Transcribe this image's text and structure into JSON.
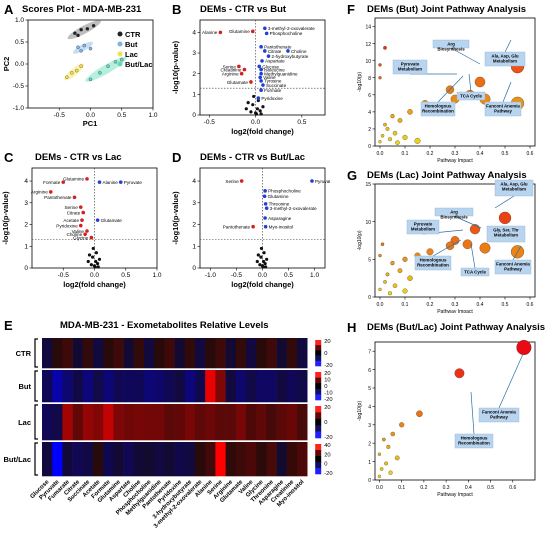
{
  "panels": {
    "A": {
      "letter": "A",
      "title": "Scores Plot - MDA-MB-231",
      "xlabel": "PC1",
      "ylabel": "PC2",
      "legend": [
        "CTR",
        "But",
        "Lac",
        "But/Lac"
      ]
    },
    "B": {
      "letter": "B",
      "title": "DEMs - CTR vs But"
    },
    "C": {
      "letter": "C",
      "title": "DEMs - CTR vs Lac"
    },
    "D": {
      "letter": "D",
      "title": "DEMs - CTR vs But/Lac"
    },
    "E": {
      "letter": "E",
      "title": "MDA-MB-231 - Exometabolites Relative Levels",
      "rows": [
        "CTR",
        "But",
        "Lac",
        "But/Lac"
      ]
    },
    "F": {
      "letter": "F",
      "title": "DEMs (But) Joint Pathway Analysis"
    },
    "G": {
      "letter": "G",
      "title": "DEMs (Lac) Joint Pathway Analysis"
    },
    "H": {
      "letter": "H",
      "title": "DEMs (But/Lac) Joint Pathway Analysis"
    }
  },
  "volcano_axes": {
    "xlabel": "log2(fold change)",
    "ylabel": "-log10(p-value)"
  },
  "pathway_axes": {
    "xlabel": "Pathway Impact",
    "ylabel": "-log10(p)"
  },
  "colors": {
    "ctr": "#222222",
    "but": "#7fb3e6",
    "lac": "#f2e04a",
    "butlac": "#5fd9b8",
    "down": "#d62020",
    "up": "#1f3fd6",
    "ns": "#111111"
  },
  "chart_data": [
    {
      "id": "A",
      "type": "scatter",
      "title": "Scores Plot - MDA-MB-231",
      "xlabel": "PC1",
      "ylabel": "PC2",
      "xlim": [
        -1.0,
        1.0
      ],
      "ylim": [
        -1.0,
        1.0
      ],
      "xticks": [
        "-0.5",
        "0.0",
        "0.5",
        "1.0"
      ],
      "yticks": [
        "-1.0",
        "-0.5",
        "0.0",
        "0.5",
        "1.0"
      ],
      "legend_position": "top-right",
      "series": [
        {
          "name": "CTR",
          "points": [
            [
              -0.25,
              0.7
            ],
            [
              -0.15,
              0.78
            ],
            [
              -0.05,
              0.8
            ],
            [
              0.05,
              0.87
            ],
            [
              -0.2,
              0.65
            ]
          ]
        },
        {
          "name": "But",
          "points": [
            [
              -0.2,
              0.38
            ],
            [
              -0.1,
              0.42
            ],
            [
              0.0,
              0.35
            ],
            [
              -0.15,
              0.3
            ]
          ]
        },
        {
          "name": "Lac",
          "points": [
            [
              -0.38,
              -0.3
            ],
            [
              -0.3,
              -0.2
            ],
            [
              -0.22,
              -0.15
            ],
            [
              -0.15,
              -0.05
            ]
          ]
        },
        {
          "name": "But/Lac",
          "points": [
            [
              0.0,
              -0.35
            ],
            [
              0.15,
              -0.2
            ],
            [
              0.28,
              -0.05
            ],
            [
              0.4,
              0.05
            ],
            [
              0.5,
              0.1
            ]
          ]
        }
      ]
    },
    {
      "id": "B",
      "type": "scatter",
      "title": "DEMs - CTR vs But",
      "xlim": [
        -0.6,
        0.75
      ],
      "ylim": [
        0,
        4.6
      ],
      "xticks": [
        "-0.5",
        "0.0",
        "0.5"
      ],
      "yticks": [
        "0",
        "1",
        "2",
        "3",
        "4"
      ],
      "points": [
        {
          "name": "Alanine",
          "x": -0.38,
          "y": 4.0,
          "dir": "down"
        },
        {
          "name": "Glutamine",
          "x": -0.03,
          "y": 4.05,
          "dir": "down"
        },
        {
          "name": "3-methyl-2-oxovalerate",
          "x": 0.1,
          "y": 4.2,
          "dir": "up"
        },
        {
          "name": "Phosphocholine",
          "x": 0.12,
          "y": 3.95,
          "dir": "up"
        },
        {
          "name": "Pantothenate",
          "x": 0.06,
          "y": 3.3,
          "dir": "up"
        },
        {
          "name": "Citrate",
          "x": 0.1,
          "y": 3.1,
          "dir": "up"
        },
        {
          "name": "Choline",
          "x": 0.35,
          "y": 3.1,
          "dir": "up"
        },
        {
          "name": "2-hydroxybutyrate",
          "x": 0.14,
          "y": 2.85,
          "dir": "up"
        },
        {
          "name": "Aspartate",
          "x": 0.07,
          "y": 2.62,
          "dir": "up"
        },
        {
          "name": "Serine",
          "x": -0.18,
          "y": 2.35,
          "dir": "down"
        },
        {
          "name": "Glucose",
          "x": 0.04,
          "y": 2.35,
          "dir": "up"
        },
        {
          "name": "Creatinine",
          "x": -0.12,
          "y": 2.2,
          "dir": "down"
        },
        {
          "name": "Isoleucine",
          "x": 0.06,
          "y": 2.2,
          "dir": "up"
        },
        {
          "name": "Arginine",
          "x": -0.15,
          "y": 2.0,
          "dir": "down"
        },
        {
          "name": "Methylguanidine",
          "x": 0.06,
          "y": 2.0,
          "dir": "up"
        },
        {
          "name": "Valine",
          "x": 0.05,
          "y": 1.82,
          "dir": "up"
        },
        {
          "name": "Glutamate",
          "x": -0.05,
          "y": 1.6,
          "dir": "down"
        },
        {
          "name": "Tyrosine",
          "x": 0.06,
          "y": 1.65,
          "dir": "up"
        },
        {
          "name": "Succinate",
          "x": 0.08,
          "y": 1.45,
          "dir": "up"
        },
        {
          "name": "Formate",
          "x": 0.06,
          "y": 1.2,
          "dir": "up"
        },
        {
          "name": "Pyridoxine",
          "x": 0.03,
          "y": 0.82,
          "dir": "up"
        }
      ],
      "threshold_y": 1.3
    },
    {
      "id": "C",
      "type": "scatter",
      "title": "DEMs - CTR vs Lac",
      "xlim": [
        -1.0,
        1.0
      ],
      "ylim": [
        0,
        4.6
      ],
      "xticks": [
        "-0.5",
        "0.0",
        "0.5",
        "1.0"
      ],
      "yticks": [
        "0",
        "1",
        "2",
        "3",
        "4"
      ],
      "points": [
        {
          "name": "Glutamine",
          "x": -0.12,
          "y": 4.1,
          "dir": "down"
        },
        {
          "name": "Formate",
          "x": -0.5,
          "y": 3.95,
          "dir": "down"
        },
        {
          "name": "Alanine",
          "x": 0.08,
          "y": 3.95,
          "dir": "up"
        },
        {
          "name": "Pyruvate",
          "x": 0.42,
          "y": 3.95,
          "dir": "up"
        },
        {
          "name": "Arginine",
          "x": -0.7,
          "y": 3.5,
          "dir": "down"
        },
        {
          "name": "Pantothenate",
          "x": -0.32,
          "y": 3.25,
          "dir": "down"
        },
        {
          "name": "Serine",
          "x": -0.22,
          "y": 2.8,
          "dir": "down"
        },
        {
          "name": "Citrate",
          "x": -0.18,
          "y": 2.55,
          "dir": "down"
        },
        {
          "name": "Acetate",
          "x": -0.2,
          "y": 2.2,
          "dir": "down"
        },
        {
          "name": "Glutamate",
          "x": 0.05,
          "y": 2.2,
          "dir": "up"
        },
        {
          "name": "Pyridoxine",
          "x": -0.22,
          "y": 1.95,
          "dir": "down"
        },
        {
          "name": "Valine",
          "x": -0.12,
          "y": 1.7,
          "dir": "down"
        },
        {
          "name": "Choline",
          "x": -0.15,
          "y": 1.55,
          "dir": "down"
        },
        {
          "name": "Glycine",
          "x": -0.05,
          "y": 1.4,
          "dir": "down"
        }
      ],
      "threshold_y": 1.3
    },
    {
      "id": "D",
      "type": "scatter",
      "title": "DEMs - CTR vs But/Lac",
      "xlim": [
        -1.2,
        1.2
      ],
      "ylim": [
        0,
        4.6
      ],
      "xticks": [
        "-1.0",
        "-0.5",
        "0.0",
        "0.5",
        "1.0"
      ],
      "yticks": [
        "0",
        "1",
        "2",
        "3",
        "4"
      ],
      "points": [
        {
          "name": "Serine",
          "x": -0.4,
          "y": 4.0,
          "dir": "down"
        },
        {
          "name": "Pyruvate",
          "x": 0.95,
          "y": 4.0,
          "dir": "up"
        },
        {
          "name": "Phosphocholine",
          "x": 0.05,
          "y": 3.55,
          "dir": "up"
        },
        {
          "name": "Glutamine",
          "x": 0.04,
          "y": 3.3,
          "dir": "up"
        },
        {
          "name": "Threonine",
          "x": 0.06,
          "y": 2.95,
          "dir": "up"
        },
        {
          "name": "3-methyl-2-oxovalerate",
          "x": 0.08,
          "y": 2.75,
          "dir": "up"
        },
        {
          "name": "Asparagine",
          "x": 0.05,
          "y": 2.3,
          "dir": "up"
        },
        {
          "name": "Pantothenate",
          "x": -0.18,
          "y": 1.9,
          "dir": "down"
        },
        {
          "name": "Myo-inositol",
          "x": 0.06,
          "y": 1.9,
          "dir": "up"
        }
      ],
      "threshold_y": 1.3
    },
    {
      "id": "E",
      "type": "heatmap",
      "title": "MDA-MB-231 - Exometabolites Relative Levels",
      "rows": [
        "CTR",
        "But",
        "Lac",
        "But/Lac"
      ],
      "columns": [
        "Glucose",
        "Pyruvate",
        "Fumarate",
        "Citrate",
        "Succinate",
        "Acetate",
        "Formate",
        "Glutamine",
        "Aspartate",
        "Choline",
        "Phosphocholine",
        "Methylguanidine",
        "Pantothenate",
        "Pyridoxine",
        "3-hydroxybutyrate",
        "3-methyl-2-oxovalerate",
        "Alanine",
        "Serine",
        "Arginine",
        "Glutamate",
        "Valine",
        "Glycine",
        "Threonine",
        "Asparagine",
        "Creatinine",
        "Myo-inositol"
      ],
      "values": [
        [
          0,
          0,
          0,
          0,
          0,
          0,
          0,
          0,
          0,
          0,
          0,
          0,
          0,
          0,
          0,
          0,
          0,
          0,
          0,
          0,
          0,
          0,
          0,
          0,
          0,
          0
        ],
        [
          -8,
          -15,
          -10,
          -7,
          -10,
          -6,
          -8,
          -6,
          -10,
          -5,
          -12,
          -6,
          -6,
          -6,
          -10,
          -7,
          30,
          12,
          -6,
          -8,
          -6,
          -5,
          -8,
          -6,
          -5,
          -6
        ],
        [
          -5,
          -6,
          20,
          8,
          12,
          14,
          20,
          15,
          10,
          8,
          12,
          9,
          10,
          8,
          8,
          9,
          8,
          10,
          7,
          8,
          7,
          6,
          7,
          7,
          6,
          6
        ],
        [
          -6,
          -35,
          -4,
          -3,
          -4,
          -3,
          -4,
          -3,
          -3,
          -2,
          -4,
          -2,
          -3,
          -2,
          -3,
          -3,
          5,
          30,
          4,
          3,
          2,
          2,
          3,
          2,
          2,
          2
        ]
      ],
      "legend_ranges": [
        [
          "-20",
          "0",
          "20"
        ],
        [
          "-20",
          "-10",
          "0",
          "10",
          "20"
        ],
        [
          "-20",
          "0",
          "20"
        ],
        [
          "-20",
          "0",
          "20",
          "40"
        ]
      ]
    },
    {
      "id": "F",
      "type": "scatter",
      "title": "DEMs (But) Joint Pathway Analysis",
      "xlabel": "Pathway Impact",
      "ylabel": "-log10(p)",
      "xlim": [
        -0.02,
        0.62
      ],
      "ylim": [
        0,
        15
      ],
      "xticks": [
        "0.0",
        "0.1",
        "0.2",
        "0.3",
        "0.4",
        "0.5",
        "0.6"
      ],
      "yticks": [
        "0",
        "2",
        "4",
        "6",
        "8",
        "10",
        "12",
        "14"
      ],
      "annotations": [
        "Arg Biosynthesis",
        "Pyruvate Metabolism",
        "Ala, Asp, Glu Metabolism",
        "TCA Cycle",
        "Homologous Recombination",
        "Fanconi Anemia Pathway"
      ],
      "points": [
        [
          0.55,
          9.3
        ],
        [
          0.4,
          7.5
        ],
        [
          0.36,
          6.0
        ],
        [
          0.3,
          5.5
        ],
        [
          0.28,
          6.6
        ],
        [
          0.42,
          5.5
        ],
        [
          0.55,
          5.0
        ],
        [
          0.18,
          5.0
        ],
        [
          0.12,
          4.0
        ],
        [
          0.05,
          3.5
        ],
        [
          0.08,
          3.0
        ],
        [
          0.02,
          2.5
        ],
        [
          0.03,
          2.0
        ],
        [
          0.06,
          1.5
        ],
        [
          0.01,
          1.2
        ],
        [
          0.1,
          1.0
        ],
        [
          0.04,
          0.8
        ],
        [
          0.0,
          0.5
        ],
        [
          0.15,
          0.6
        ],
        [
          0.07,
          0.4
        ],
        [
          0.02,
          11.5
        ],
        [
          0.0,
          9.5
        ],
        [
          0.0,
          8.0
        ]
      ]
    },
    {
      "id": "G",
      "type": "scatter",
      "title": "DEMs (Lac) Joint Pathway Analysis",
      "xlabel": "Pathway Impact",
      "ylabel": "-log10(p)",
      "xlim": [
        -0.02,
        0.62
      ],
      "ylim": [
        0,
        15
      ],
      "xticks": [
        "0.0",
        "0.1",
        "0.2",
        "0.3",
        "0.4",
        "0.5",
        "0.6"
      ],
      "yticks": [
        "0",
        "5",
        "10",
        "15"
      ],
      "annotations": [
        "Ala, Asp, Glu Metabolism",
        "Arg Biosynthesis",
        "Pyruvate Metabolism",
        "Gly, Ser, Thr Metabolism",
        "Homologous Recombination",
        "TCA Cycle",
        "Fanconi Anemia Pathway"
      ],
      "points": [
        [
          0.5,
          10.5
        ],
        [
          0.38,
          9.0
        ],
        [
          0.3,
          7.5
        ],
        [
          0.35,
          7.0
        ],
        [
          0.55,
          6.0
        ],
        [
          0.28,
          6.8
        ],
        [
          0.42,
          6.5
        ],
        [
          0.2,
          6.0
        ],
        [
          0.15,
          5.5
        ],
        [
          0.1,
          5.0
        ],
        [
          0.05,
          4.5
        ],
        [
          0.08,
          3.5
        ],
        [
          0.03,
          3.0
        ],
        [
          0.02,
          2.0
        ],
        [
          0.12,
          2.5
        ],
        [
          0.06,
          1.5
        ],
        [
          0.0,
          1.0
        ],
        [
          0.1,
          0.8
        ],
        [
          0.04,
          0.5
        ],
        [
          0.01,
          7.0
        ],
        [
          0.0,
          5.5
        ]
      ]
    },
    {
      "id": "H",
      "type": "scatter",
      "title": "DEMs (But/Lac) Joint Pathway Analysis",
      "xlabel": "Pathway Impact",
      "ylabel": "-log10(p)",
      "xlim": [
        -0.02,
        0.7
      ],
      "ylim": [
        0,
        7.5
      ],
      "xticks": [
        "0.0",
        "0.1",
        "0.2",
        "0.3",
        "0.4",
        "0.5",
        "0.6"
      ],
      "yticks": [
        "0",
        "1",
        "2",
        "3",
        "4",
        "5",
        "6",
        "7"
      ],
      "annotations": [
        "Fanconi Anemia Pathway",
        "Homologous Recombination"
      ],
      "points": [
        [
          0.65,
          7.2
        ],
        [
          0.36,
          5.8
        ],
        [
          0.18,
          3.6
        ],
        [
          0.1,
          3.0
        ],
        [
          0.06,
          2.5
        ],
        [
          0.02,
          2.2
        ],
        [
          0.04,
          1.8
        ],
        [
          0.0,
          1.4
        ],
        [
          0.08,
          1.2
        ],
        [
          0.03,
          0.9
        ],
        [
          0.01,
          0.6
        ],
        [
          0.05,
          0.4
        ],
        [
          0.0,
          0.2
        ]
      ]
    }
  ]
}
